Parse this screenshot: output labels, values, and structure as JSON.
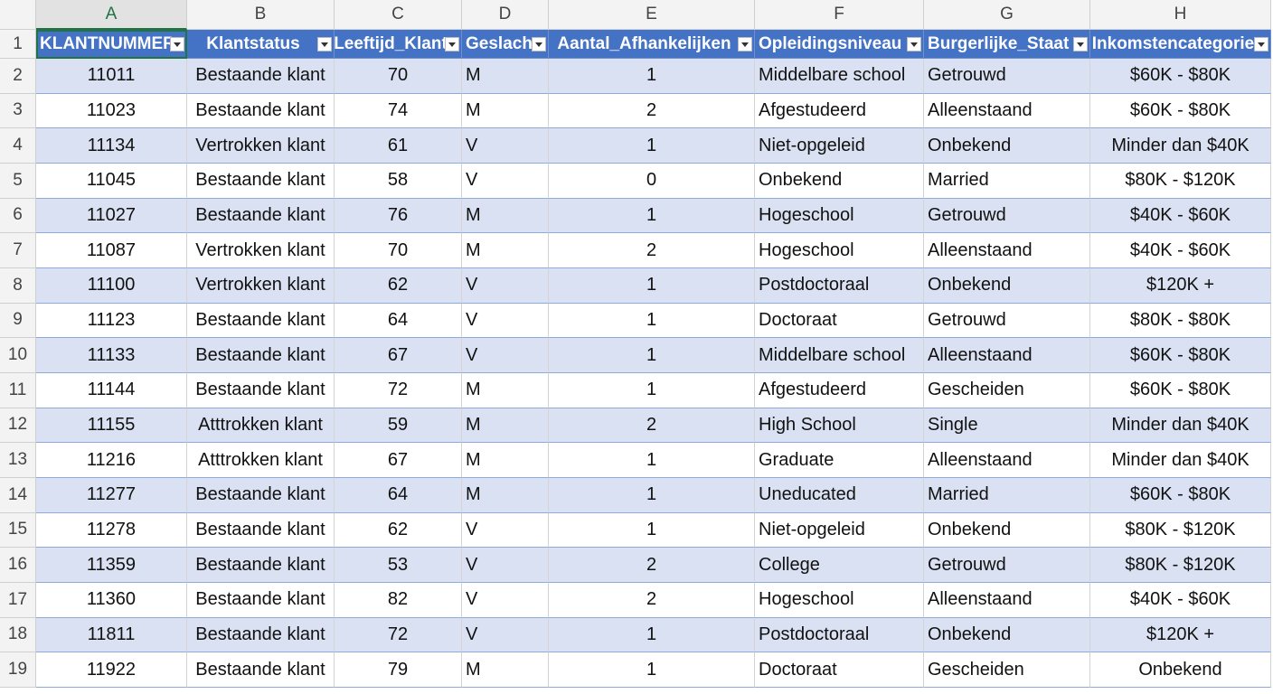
{
  "column_letters": [
    "A",
    "B",
    "C",
    "D",
    "E",
    "F",
    "G",
    "H"
  ],
  "row_numbers": [
    1,
    2,
    3,
    4,
    5,
    6,
    7,
    8,
    9,
    10,
    11,
    12,
    13,
    14,
    15,
    16,
    17,
    18,
    19
  ],
  "table": {
    "header": [
      "KLANTNUMMER",
      "Klantstatus",
      "Leeftijd_Klant",
      "Geslacht",
      "Aantal_Afhankelijken",
      "Opleidingsniveau",
      "Burgerlijke_Staat",
      "Inkomstencategorie"
    ],
    "rows": [
      [
        "11011",
        "Bestaande klant",
        "70",
        "M",
        "1",
        "Middelbare school",
        "Getrouwd",
        "$60K - $80K"
      ],
      [
        "11023",
        "Bestaande klant",
        "74",
        "M",
        "2",
        "Afgestudeerd",
        "Alleenstaand",
        "$60K - $80K"
      ],
      [
        "11134",
        "Vertrokken klant",
        "61",
        "V",
        "1",
        "Niet-opgeleid",
        "Onbekend",
        "Minder dan $40K"
      ],
      [
        "11045",
        "Bestaande klant",
        "58",
        "V",
        "0",
        "Onbekend",
        "Married",
        "$80K - $120K"
      ],
      [
        "11027",
        "Bestaande klant",
        "76",
        "M",
        "1",
        "Hogeschool",
        "Getrouwd",
        "$40K - $60K"
      ],
      [
        "11087",
        "Vertrokken klant",
        "70",
        "M",
        "2",
        "Hogeschool",
        "Alleenstaand",
        "$40K - $60K"
      ],
      [
        "11100",
        "Vertrokken klant",
        "62",
        "V",
        "1",
        "Postdoctoraal",
        "Onbekend",
        "$120K +"
      ],
      [
        "11123",
        "Bestaande klant",
        "64",
        "V",
        "1",
        "Doctoraat",
        "Getrouwd",
        "$80K - $80K"
      ],
      [
        "11133",
        "Bestaande klant",
        "67",
        "V",
        "1",
        "Middelbare school",
        "Alleenstaand",
        "$60K - $80K"
      ],
      [
        "11144",
        "Bestaande klant",
        "72",
        "M",
        "1",
        "Afgestudeerd",
        "Gescheiden",
        "$60K - $80K"
      ],
      [
        "11155",
        "Atttrokken klant",
        "59",
        "M",
        "2",
        "High School",
        "Single",
        "Minder dan $40K"
      ],
      [
        "11216",
        "Atttrokken klant",
        "67",
        "M",
        "1",
        "Graduate",
        "Alleenstaand",
        "Minder dan $40K"
      ],
      [
        "11277",
        "Bestaande klant",
        "64",
        "M",
        "1",
        "Uneducated",
        "Married",
        "$60K - $80K"
      ],
      [
        "11278",
        "Bestaande klant",
        "62",
        "V",
        "1",
        "Niet-opgeleid",
        "Onbekend",
        "$80K - $120K"
      ],
      [
        "11359",
        "Bestaande klant",
        "53",
        "V",
        "2",
        "College",
        "Getrouwd",
        "$80K - $120K"
      ],
      [
        "11360",
        "Bestaande klant",
        "82",
        "V",
        "2",
        "Hogeschool",
        "Alleenstaand",
        "$40K - $60K"
      ],
      [
        "11811",
        "Bestaande klant",
        "72",
        "V",
        "1",
        "Postdoctoraal",
        "Onbekend",
        "$120K +"
      ],
      [
        "11922",
        "Bestaande klant",
        "79",
        "M",
        "1",
        "Doctoraat",
        "Gescheiden",
        "Onbekend"
      ]
    ]
  }
}
